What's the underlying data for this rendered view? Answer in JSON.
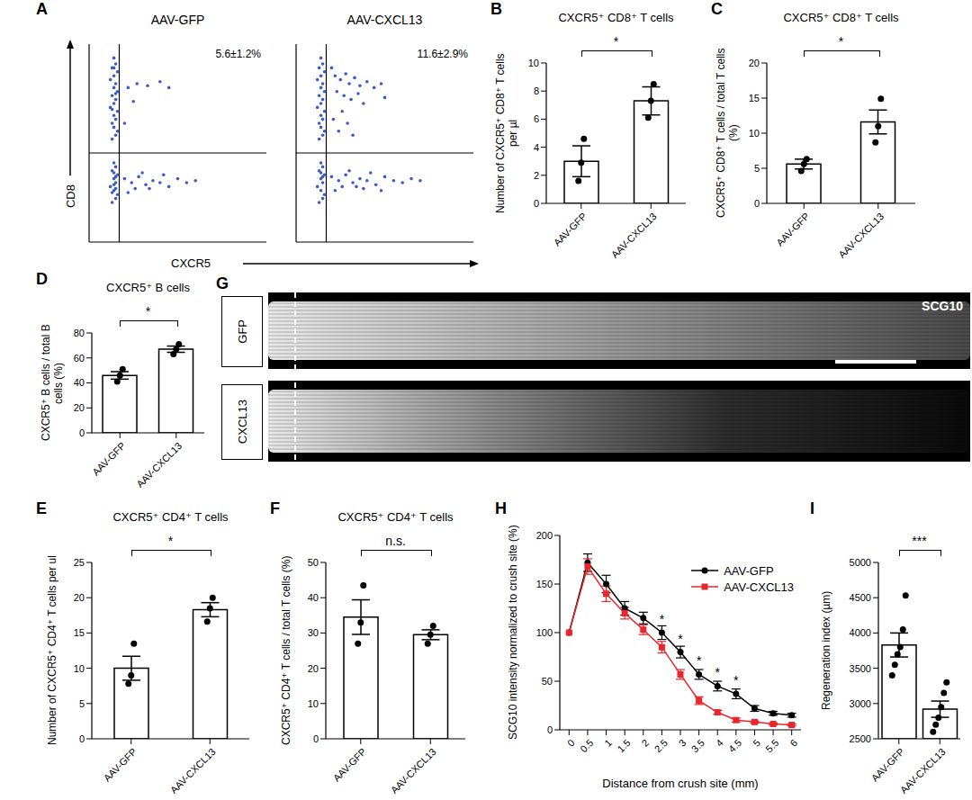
{
  "chart_data": [
    {
      "type": "scatter",
      "panel": "A",
      "xlabel": "CXCR5",
      "ylabel": "CD8",
      "xlim": [
        0,
        100
      ],
      "ylim": [
        0,
        100
      ],
      "tick_labels": false,
      "gate": {
        "x": 17,
        "y": 45
      },
      "color": "#3b5cc4",
      "plots": [
        {
          "title": "AAV-GFP",
          "annotation": "5.6±1.2%",
          "points": [
            [
              14,
              93
            ],
            [
              15,
              90
            ],
            [
              13,
              88
            ],
            [
              16,
              86
            ],
            [
              14,
              84
            ],
            [
              12,
              82
            ],
            [
              15,
              80
            ],
            [
              14,
              78
            ],
            [
              16,
              76
            ],
            [
              13,
              74
            ],
            [
              15,
              72
            ],
            [
              14,
              70
            ],
            [
              12,
              68
            ],
            [
              16,
              66
            ],
            [
              14,
              64
            ],
            [
              15,
              62
            ],
            [
              13,
              60
            ],
            [
              14,
              58
            ],
            [
              16,
              56
            ],
            [
              15,
              54
            ],
            [
              13,
              52
            ],
            [
              14,
              88
            ],
            [
              15,
              75
            ],
            [
              13,
              67
            ],
            [
              22,
              78
            ],
            [
              27,
              80
            ],
            [
              33,
              79
            ],
            [
              40,
              81
            ],
            [
              25,
              71
            ],
            [
              45,
              78
            ],
            [
              20,
              60
            ],
            [
              14,
              40
            ],
            [
              15,
              38
            ],
            [
              13,
              36
            ],
            [
              16,
              34
            ],
            [
              14,
              32
            ],
            [
              15,
              30
            ],
            [
              12,
              28
            ],
            [
              14,
              26
            ],
            [
              16,
              24
            ],
            [
              15,
              22
            ],
            [
              13,
              20
            ],
            [
              14,
              35
            ],
            [
              15,
              33
            ],
            [
              14,
              29
            ],
            [
              13,
              25
            ],
            [
              15,
              27
            ],
            [
              20,
              32
            ],
            [
              24,
              30
            ],
            [
              28,
              33
            ],
            [
              32,
              29
            ],
            [
              36,
              31
            ],
            [
              40,
              30
            ],
            [
              45,
              28
            ],
            [
              50,
              32
            ],
            [
              55,
              30
            ],
            [
              60,
              31
            ],
            [
              26,
              27
            ],
            [
              34,
              27
            ],
            [
              30,
              35
            ],
            [
              22,
              25
            ],
            [
              42,
              34
            ]
          ]
        },
        {
          "title": "AAV-CXCL13",
          "annotation": "11.6±2.9%",
          "points": [
            [
              14,
              93
            ],
            [
              15,
              90
            ],
            [
              13,
              88
            ],
            [
              16,
              86
            ],
            [
              14,
              84
            ],
            [
              12,
              82
            ],
            [
              15,
              80
            ],
            [
              14,
              78
            ],
            [
              16,
              76
            ],
            [
              13,
              74
            ],
            [
              15,
              72
            ],
            [
              14,
              70
            ],
            [
              12,
              68
            ],
            [
              16,
              66
            ],
            [
              14,
              64
            ],
            [
              15,
              62
            ],
            [
              13,
              60
            ],
            [
              14,
              58
            ],
            [
              16,
              56
            ],
            [
              15,
              54
            ],
            [
              13,
              52
            ],
            [
              20,
              88
            ],
            [
              22,
              84
            ],
            [
              25,
              82
            ],
            [
              28,
              85
            ],
            [
              30,
              80
            ],
            [
              33,
              83
            ],
            [
              36,
              79
            ],
            [
              40,
              81
            ],
            [
              44,
              78
            ],
            [
              48,
              80
            ],
            [
              23,
              76
            ],
            [
              27,
              74
            ],
            [
              31,
              72
            ],
            [
              35,
              75
            ],
            [
              26,
              66
            ],
            [
              21,
              62
            ],
            [
              29,
              60
            ],
            [
              38,
              70
            ],
            [
              50,
              73
            ],
            [
              24,
              56
            ],
            [
              32,
              54
            ],
            [
              14,
              40
            ],
            [
              15,
              38
            ],
            [
              13,
              36
            ],
            [
              16,
              34
            ],
            [
              14,
              32
            ],
            [
              15,
              30
            ],
            [
              12,
              28
            ],
            [
              14,
              26
            ],
            [
              16,
              24
            ],
            [
              15,
              22
            ],
            [
              13,
              20
            ],
            [
              14,
              35
            ],
            [
              15,
              33
            ],
            [
              20,
              33
            ],
            [
              24,
              31
            ],
            [
              28,
              34
            ],
            [
              32,
              30
            ],
            [
              36,
              32
            ],
            [
              40,
              31
            ],
            [
              45,
              29
            ],
            [
              50,
              33
            ],
            [
              55,
              31
            ],
            [
              60,
              30
            ],
            [
              65,
              32
            ],
            [
              26,
              28
            ],
            [
              34,
              28
            ],
            [
              30,
              36
            ],
            [
              22,
              26
            ],
            [
              42,
              35
            ],
            [
              38,
              27
            ],
            [
              48,
              26
            ],
            [
              70,
              31
            ]
          ]
        }
      ]
    },
    {
      "type": "bar",
      "panel": "B",
      "title": "CXCR5⁺ CD8⁺ T cells",
      "ylabel": "Number of CXCR5⁺ CD8⁺ T cells per µl",
      "categories": [
        "AAV-GFP",
        "AAV-CXCL13"
      ],
      "values": [
        3.0,
        7.3
      ],
      "errors": [
        1.1,
        1.0
      ],
      "points": [
        [
          1.6,
          2.9,
          4.6
        ],
        [
          6.1,
          7.3,
          8.5
        ]
      ],
      "ylim": [
        0,
        10
      ],
      "yticks": [
        0,
        2,
        4,
        6,
        8,
        10
      ],
      "significance": "*"
    },
    {
      "type": "bar",
      "panel": "C",
      "title": "CXCR5⁺ CD8⁺ T cells",
      "ylabel": "CXCR5⁺ CD8⁺ T cells / total T cells (%)",
      "categories": [
        "AAV-GFP",
        "AAV-CXCL13"
      ],
      "values": [
        5.6,
        11.6
      ],
      "errors": [
        0.7,
        1.7
      ],
      "points": [
        [
          4.6,
          5.6,
          6.3
        ],
        [
          8.7,
          11.0,
          14.9
        ]
      ],
      "ylim": [
        0,
        20
      ],
      "yticks": [
        0,
        5,
        10,
        15,
        20
      ],
      "significance": "*"
    },
    {
      "type": "bar",
      "panel": "D",
      "title": "CXCR5⁺ B cells",
      "ylabel": "CXCR5⁺ B cells / total B cells (%)",
      "categories": [
        "AAV-GFP",
        "AAV-CXCL13"
      ],
      "values": [
        46,
        67
      ],
      "errors": [
        3,
        2.5
      ],
      "points": [
        [
          41,
          46,
          51
        ],
        [
          63,
          67,
          71
        ]
      ],
      "ylim": [
        0,
        80
      ],
      "yticks": [
        0,
        20,
        40,
        60,
        80
      ],
      "significance": "*"
    },
    {
      "type": "bar",
      "panel": "E",
      "title": "CXCR5⁺ CD4⁺ T cells",
      "ylabel": "Number of CXCR5⁺ CD4⁺ T cells per ul",
      "categories": [
        "AAV-GFP",
        "AAV-CXCL13"
      ],
      "values": [
        10,
        18.3
      ],
      "errors": [
        1.7,
        1.0
      ],
      "points": [
        [
          7.8,
          9.0,
          13.5
        ],
        [
          16.6,
          18.5,
          20.0
        ]
      ],
      "ylim": [
        0,
        25
      ],
      "yticks": [
        0,
        5,
        10,
        15,
        20,
        25
      ],
      "significance": "*"
    },
    {
      "type": "bar",
      "panel": "F",
      "title": "CXCR5⁺ CD4⁺ T cells",
      "ylabel": "CXCR5⁺ CD4⁺ T cells / total T cells (%)",
      "categories": [
        "AAV-GFP",
        "AAV-CXCL13"
      ],
      "values": [
        34.5,
        29.5
      ],
      "errors": [
        4.9,
        1.4
      ],
      "points": [
        [
          27,
          33,
          43.5
        ],
        [
          27,
          29.5,
          32
        ]
      ],
      "ylim": [
        0,
        50
      ],
      "yticks": [
        0,
        10,
        20,
        30,
        40,
        50
      ],
      "significance": "n.s."
    },
    {
      "type": "image",
      "panel": "G",
      "rows": [
        "GFP",
        "CXCL13"
      ],
      "stain": "SCG10"
    },
    {
      "type": "line",
      "panel": "H",
      "xlabel": "Distance from crush site (mm)",
      "ylabel": "SCG10 intensity normalized to crush site (%)",
      "x": [
        0,
        0.5,
        1,
        1.5,
        2,
        2.5,
        3,
        3.5,
        4,
        4.5,
        5,
        5.5,
        6
      ],
      "xlim": [
        -0.25,
        6.25
      ],
      "xticks": [
        0,
        0.5,
        1,
        1.5,
        2,
        2.5,
        3,
        3.5,
        4,
        4.5,
        5,
        5.5,
        6
      ],
      "ylim": [
        0,
        200
      ],
      "yticks": [
        0,
        50,
        100,
        150,
        200
      ],
      "legend": "upper right",
      "series": [
        {
          "name": "AAV-GFP",
          "color": "#000000",
          "marker": "circle",
          "values": [
            100,
            172,
            150,
            125,
            115,
            100,
            80,
            57,
            45,
            37,
            22,
            17,
            15
          ],
          "errors": [
            0,
            9,
            9,
            7,
            6,
            7,
            6,
            5,
            5,
            5,
            3,
            2,
            2
          ]
        },
        {
          "name": "AAV-CXCL13",
          "color": "#e8262b",
          "marker": "square",
          "values": [
            100,
            168,
            140,
            120,
            103,
            85,
            57,
            30,
            18,
            10,
            8,
            6,
            5
          ],
          "errors": [
            0,
            8,
            8,
            6,
            5,
            6,
            5,
            4,
            2,
            2,
            1,
            1,
            1
          ]
        }
      ],
      "annotations": [
        {
          "x": 2.5,
          "text": "*"
        },
        {
          "x": 3,
          "text": "*"
        },
        {
          "x": 3.5,
          "text": "*"
        },
        {
          "x": 4,
          "text": "*"
        },
        {
          "x": 4.5,
          "text": "*"
        }
      ]
    },
    {
      "type": "bar",
      "panel": "I",
      "title": "",
      "ylabel": "Regeneration index (µm)",
      "categories": [
        "AAV-GFP",
        "AAV-CXCL13"
      ],
      "values": [
        3830,
        2920
      ],
      "errors": [
        170,
        115
      ],
      "points": [
        [
          3400,
          3550,
          3700,
          3800,
          4050,
          4530
        ],
        [
          2600,
          2700,
          2800,
          2950,
          3150,
          3300
        ]
      ],
      "ylim": [
        2500,
        5000
      ],
      "yticks": [
        2500,
        3000,
        3500,
        4000,
        4500,
        5000
      ],
      "significance": "***"
    }
  ]
}
